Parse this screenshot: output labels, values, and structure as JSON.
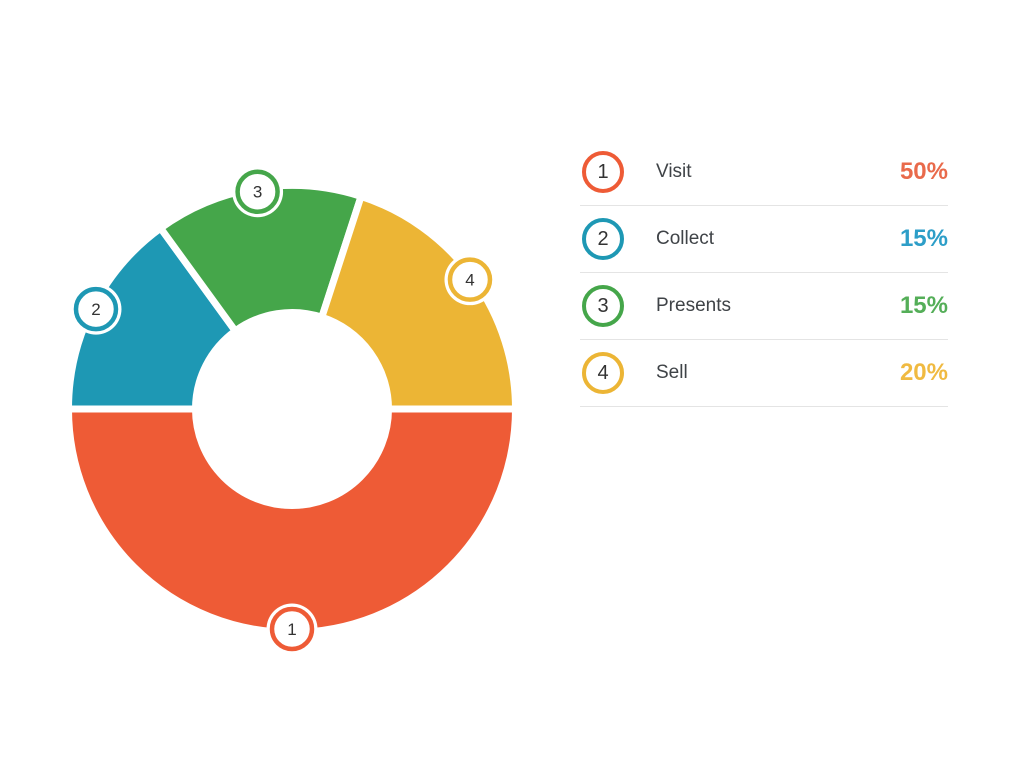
{
  "colors": {
    "background": "#FFFFFF",
    "divider": "#E4E4E4",
    "label_text": "#3F4347",
    "marker_number": "#333333",
    "segment_gap": "#FFFFFF"
  },
  "chart_data": {
    "type": "pie",
    "subtype": "donut",
    "title": "",
    "categories": [
      "Visit",
      "Collect",
      "Presents",
      "Sell"
    ],
    "values": [
      50,
      15,
      15,
      20
    ],
    "unit": "%",
    "legend_position": "right",
    "start_angle_from_north_cw": 90,
    "items": [
      {
        "num": "1",
        "label": "Visit",
        "value": 50,
        "pct_label": "50%",
        "color": "#EE5B36",
        "pct_color": "#E96A4B"
      },
      {
        "num": "2",
        "label": "Collect",
        "value": 15,
        "pct_label": "15%",
        "color": "#1E98B4",
        "pct_color": "#2D9EC8"
      },
      {
        "num": "3",
        "label": "Presents",
        "value": 15,
        "pct_label": "15%",
        "color": "#45A64A",
        "pct_color": "#54AE58"
      },
      {
        "num": "4",
        "label": "Sell",
        "value": 20,
        "pct_label": "20%",
        "color": "#ECB535",
        "pct_color": "#F0BA41"
      }
    ]
  }
}
